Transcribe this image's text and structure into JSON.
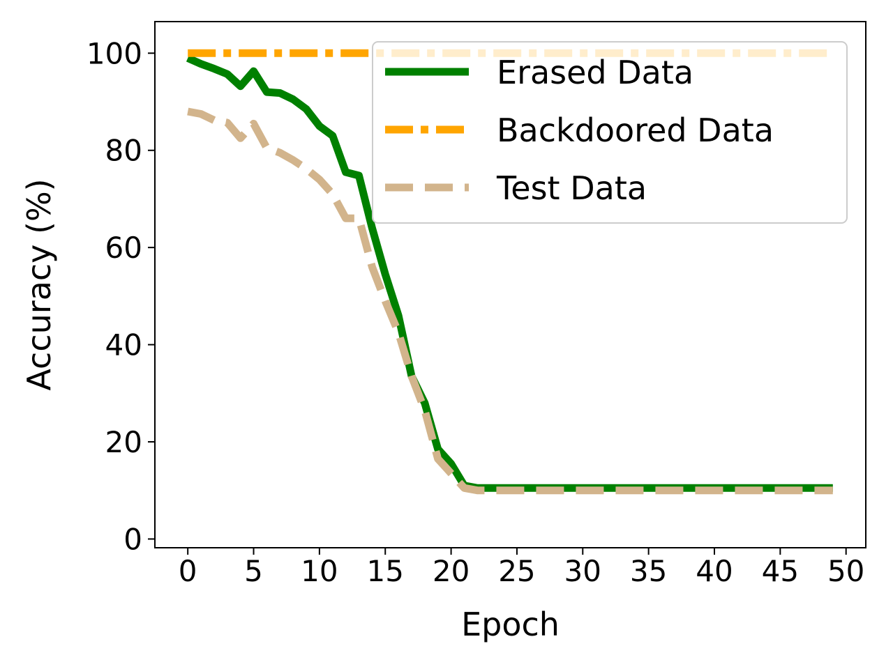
{
  "chart_data": {
    "type": "line",
    "xlabel": "Epoch",
    "ylabel": "Accuracy (%)",
    "xlim": [
      -2.5,
      51.5
    ],
    "ylim": [
      -1.8,
      106.5
    ],
    "xticks": [
      0,
      5,
      10,
      15,
      20,
      25,
      30,
      35,
      40,
      45,
      50
    ],
    "yticks": [
      0,
      20,
      40,
      60,
      80,
      100
    ],
    "legend_position": "top-right",
    "grid": false,
    "x": [
      0,
      1,
      2,
      3,
      4,
      5,
      6,
      7,
      8,
      9,
      10,
      11,
      12,
      13,
      14,
      15,
      16,
      17,
      18,
      19,
      20,
      21,
      22,
      23,
      24,
      25,
      26,
      27,
      28,
      29,
      30,
      31,
      32,
      33,
      34,
      35,
      36,
      37,
      38,
      39,
      40,
      41,
      42,
      43,
      44,
      45,
      46,
      47,
      48,
      49
    ],
    "series": [
      {
        "name": "Erased Data",
        "color": "#008000",
        "style": "solid",
        "values": [
          99.0,
          97.8,
          96.8,
          95.7,
          93.2,
          96.3,
          92.0,
          91.8,
          90.5,
          88.5,
          85.0,
          83.0,
          75.5,
          74.8,
          64.0,
          54.5,
          46.0,
          33.5,
          28.0,
          18.5,
          15.5,
          11.0,
          10.5,
          10.5,
          10.5,
          10.5,
          10.5,
          10.5,
          10.5,
          10.5,
          10.5,
          10.5,
          10.5,
          10.5,
          10.5,
          10.5,
          10.5,
          10.5,
          10.5,
          10.5,
          10.5,
          10.5,
          10.5,
          10.5,
          10.5,
          10.5,
          10.5,
          10.5,
          10.5,
          10.5
        ]
      },
      {
        "name": "Backdoored Data",
        "color": "#ffa500",
        "style": "dashdot",
        "values": [
          100,
          100,
          100,
          100,
          100,
          100,
          100,
          100,
          100,
          100,
          100,
          100,
          100,
          100,
          100,
          100,
          100,
          100,
          100,
          100,
          100,
          100,
          100,
          100,
          100,
          100,
          100,
          100,
          100,
          100,
          100,
          100,
          100,
          100,
          100,
          100,
          100,
          100,
          100,
          100,
          100,
          100,
          100,
          100,
          100,
          100,
          100,
          100,
          100,
          100
        ]
      },
      {
        "name": "Test Data",
        "color": "#d2b48c",
        "style": "dashed",
        "values": [
          88.0,
          87.5,
          86.2,
          85.7,
          82.5,
          85.5,
          80.5,
          79.5,
          78.0,
          76.2,
          74.0,
          71.0,
          66.0,
          66.0,
          56.0,
          49.0,
          42.5,
          33.5,
          26.5,
          16.5,
          13.5,
          10.5,
          10.0,
          10.0,
          10.0,
          10.0,
          10.0,
          10.0,
          10.0,
          10.0,
          10.0,
          10.0,
          10.0,
          10.0,
          10.0,
          10.0,
          10.0,
          10.0,
          10.0,
          10.0,
          10.0,
          10.0,
          10.0,
          10.0,
          10.0,
          10.0,
          10.0,
          10.0,
          10.0,
          10.0
        ]
      }
    ]
  }
}
